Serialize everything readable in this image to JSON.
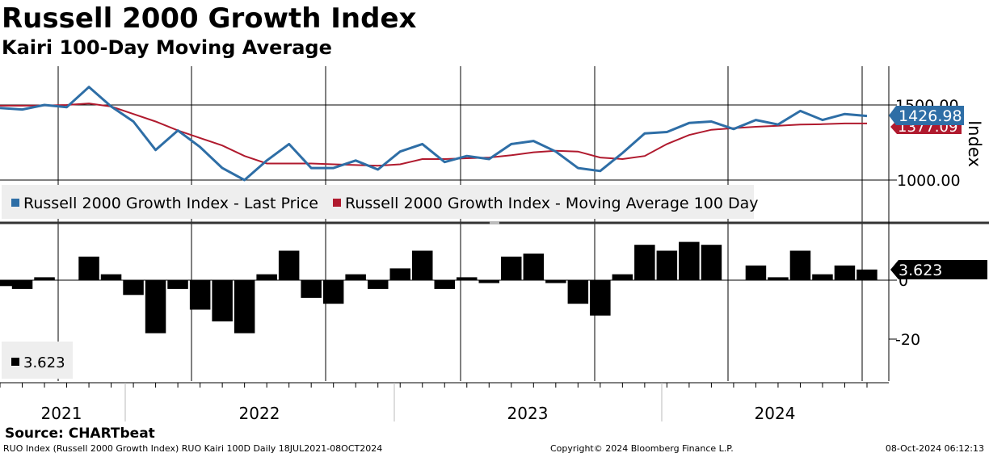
{
  "header": {
    "title": "Russell 2000 Growth Index",
    "subtitle": "Kairi 100-Day Moving Average"
  },
  "colors": {
    "price": "#2e6ea6",
    "ma": "#b01a2e",
    "kairi": "#000000",
    "grid": "#000000",
    "legend_bg": "#eeeeee"
  },
  "chart_data": [
    {
      "type": "line",
      "panel": "upper",
      "ylabel": "Index",
      "ylim": [
        920,
        1680
      ],
      "yticks": [
        {
          "value": 1500,
          "label": "1500.00"
        },
        {
          "value": 1000,
          "label": "1000.00"
        }
      ],
      "legend": [
        {
          "name": "Russell 2000 Growth Index - Last Price",
          "color": "#2e6ea6"
        },
        {
          "name": "Russell 2000 Growth Index - Moving Average 100 Day",
          "color": "#b01a2e"
        }
      ],
      "last_value_labels": [
        {
          "series": "Last Price",
          "text": "1426.98"
        },
        {
          "series": "Moving Average 100 Day",
          "text": "1377.09"
        }
      ],
      "x": [
        "2021-07",
        "2021-08",
        "2021-09",
        "2021-10",
        "2021-11",
        "2021-12",
        "2022-01",
        "2022-02",
        "2022-03",
        "2022-04",
        "2022-05",
        "2022-06",
        "2022-07",
        "2022-08",
        "2022-09",
        "2022-10",
        "2022-11",
        "2022-12",
        "2023-01",
        "2023-02",
        "2023-03",
        "2023-04",
        "2023-05",
        "2023-06",
        "2023-07",
        "2023-08",
        "2023-09",
        "2023-10",
        "2023-11",
        "2023-12",
        "2024-01",
        "2024-02",
        "2024-03",
        "2024-04",
        "2024-05",
        "2024-06",
        "2024-07",
        "2024-08",
        "2024-09",
        "2024-10"
      ],
      "series": [
        {
          "name": "Last Price",
          "values": [
            1480,
            1470,
            1500,
            1485,
            1620,
            1490,
            1390,
            1200,
            1330,
            1220,
            1080,
            1000,
            1130,
            1240,
            1080,
            1080,
            1130,
            1070,
            1190,
            1240,
            1120,
            1160,
            1140,
            1240,
            1260,
            1190,
            1080,
            1060,
            1180,
            1310,
            1320,
            1380,
            1390,
            1340,
            1400,
            1370,
            1460,
            1400,
            1440,
            1427
          ]
        },
        {
          "name": "Moving Average 100 Day",
          "values": [
            1495,
            1495,
            1497,
            1500,
            1510,
            1490,
            1440,
            1390,
            1330,
            1280,
            1230,
            1160,
            1110,
            1110,
            1110,
            1105,
            1100,
            1095,
            1105,
            1140,
            1140,
            1145,
            1150,
            1165,
            1185,
            1195,
            1190,
            1150,
            1140,
            1160,
            1240,
            1300,
            1335,
            1345,
            1355,
            1362,
            1370,
            1372,
            1377,
            1377.09
          ]
        }
      ]
    },
    {
      "type": "bar",
      "panel": "lower",
      "ylim": [
        -31,
        14
      ],
      "yticks": [
        {
          "value": 0,
          "label": "0"
        },
        {
          "value": -20,
          "label": "-20"
        }
      ],
      "legend": [
        {
          "name": "3.623",
          "color": "#000000"
        }
      ],
      "last_value_label": "3.623",
      "x": [
        "2021-07",
        "2021-08",
        "2021-09",
        "2021-10",
        "2021-11",
        "2021-12",
        "2022-01",
        "2022-02",
        "2022-03",
        "2022-04",
        "2022-05",
        "2022-06",
        "2022-07",
        "2022-08",
        "2022-09",
        "2022-10",
        "2022-11",
        "2022-12",
        "2023-01",
        "2023-02",
        "2023-03",
        "2023-04",
        "2023-05",
        "2023-06",
        "2023-07",
        "2023-08",
        "2023-09",
        "2023-10",
        "2023-11",
        "2023-12",
        "2024-01",
        "2024-02",
        "2024-03",
        "2024-04",
        "2024-05",
        "2024-06",
        "2024-07",
        "2024-08",
        "2024-09",
        "2024-10"
      ],
      "values": [
        -2,
        -3,
        1,
        0,
        8,
        2,
        -5,
        -18,
        -3,
        -10,
        -14,
        -18,
        2,
        10,
        -6,
        -8,
        2,
        -3,
        4,
        10,
        -3,
        1,
        -1,
        8,
        9,
        -1,
        -8,
        -12,
        2,
        12,
        10,
        13,
        12,
        0,
        5,
        1,
        10,
        2,
        5,
        3.623
      ]
    }
  ],
  "xaxis": {
    "years": [
      "2021",
      "2022",
      "2023",
      "2024"
    ]
  },
  "source": "Source: CHARTbeat",
  "footer": {
    "left": "RUO Index (Russell 2000 Growth Index) RUO Kairi 100D  Daily 18JUL2021-08OCT2024",
    "center": "Copyright© 2024 Bloomberg Finance L.P.",
    "right": "08-Oct-2024 06:12:13"
  }
}
